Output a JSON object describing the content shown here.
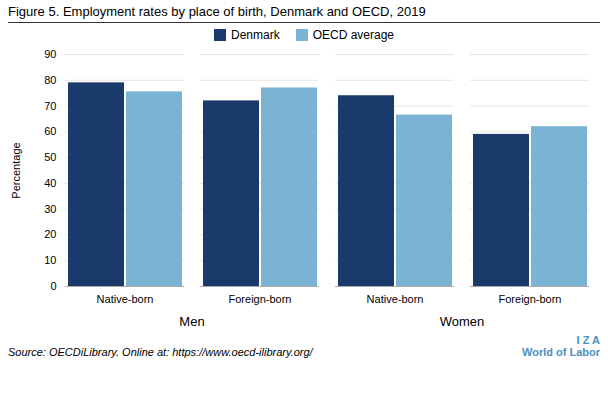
{
  "chart_data": {
    "type": "bar",
    "title": "Figure 5. Employment rates by place of birth, Denmark and OECD, 2019",
    "ylabel": "Percentage",
    "categories": [
      "Native-born",
      "Foreign-born",
      "Native-born",
      "Foreign-born"
    ],
    "category_groups": [
      "Men",
      "Men",
      "Women",
      "Women"
    ],
    "series": [
      {
        "name": "Denmark",
        "color": "#1a3a6b",
        "values": [
          79,
          72,
          74,
          59
        ]
      },
      {
        "name": "OECD average",
        "color": "#7ab3d4",
        "values": [
          75.5,
          77,
          66.5,
          62
        ]
      }
    ],
    "ylim": [
      0,
      90
    ],
    "yticks": [
      0,
      10,
      20,
      30,
      40,
      50,
      60,
      70,
      80,
      90
    ],
    "grid": true,
    "legend": "top",
    "annotations": [
      "Source: OECDiLibrary. Online at: https://www.oecd-ilibrary.org/",
      "I  Z  A\nWorld of Labor"
    ]
  }
}
